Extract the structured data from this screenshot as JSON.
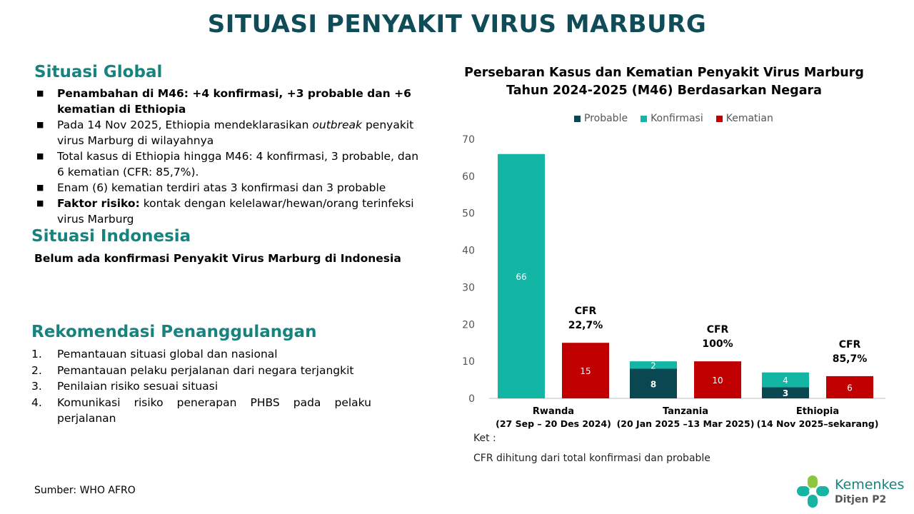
{
  "title": "SITUASI PENYAKIT VIRUS MARBURG",
  "global": {
    "heading": "Situasi Global",
    "items": [
      {
        "text": "Penambahan di M46: +4 konfirmasi, +3 probable dan +6 kematian di Ethiopia"
      },
      {
        "text_before": "Pada 14 Nov 2025, Ethiopia mendeklarasikan ",
        "text_italic": "outbreak",
        "text_after": " penyakit virus Marburg di wilayahnya"
      },
      {
        "text": "Total kasus di Ethiopia hingga M46: 4 konfirmasi, 3 probable, dan 6 kematian (CFR: 85,7%)."
      },
      {
        "text": "Enam (6) kematian terdiri atas 3 konfirmasi dan 3 probable"
      },
      {
        "bold": "Faktor risiko:",
        "text": " kontak dengan kelelawar/hewan/orang terinfeksi virus Marburg"
      }
    ]
  },
  "indonesia": {
    "heading": "Situasi Indonesia",
    "text": "Belum ada konfirmasi Penyakit Virus Marburg di Indonesia"
  },
  "recommendation": {
    "heading": "Rekomendasi Penanggulangan",
    "items": [
      {
        "num": "1.",
        "text": "Pemantauan situasi global dan nasional"
      },
      {
        "num": "2.",
        "text": "Pemantauan pelaku perjalanan dari negara terjangkit"
      },
      {
        "num": "3.",
        "text": "Penilaian risiko sesuai situasi"
      },
      {
        "num": "4.",
        "text": "Komunikasi risiko penerapan PHBS pada pelaku perjalanan"
      }
    ]
  },
  "source": "Sumber: WHO AFRO",
  "note": {
    "label": "Ket :",
    "text": "CFR dihitung dari total konfirmasi dan probable"
  },
  "logo": {
    "name": "Kemenkes",
    "sub": "Ditjen P2"
  },
  "colors": {
    "probable": "#0b4751",
    "konfirmasi": "#13b5a4",
    "kematian": "#c00000",
    "title": "#0f4c57",
    "section": "#17837f"
  },
  "chart_data": {
    "type": "bar",
    "title": "Persebaran Kasus dan Kematian Penyakit Virus Marburg Tahun 2024-2025 (M46) Berdasarkan Negara",
    "ylim": [
      0,
      70
    ],
    "yticks": [
      0,
      10,
      20,
      30,
      40,
      50,
      60,
      70
    ],
    "legend_position": "top",
    "series_names": {
      "probable": "Probable",
      "konfirmasi": "Konfirmasi",
      "kematian": "Kematian"
    },
    "groups": [
      {
        "country": "Rwanda",
        "period": "(27 Sep – 20 Des 2024)",
        "probable": 0,
        "konfirmasi": 66,
        "kematian": 15,
        "cfr_label": "CFR",
        "cfr": "22,7%"
      },
      {
        "country": "Tanzania",
        "period": "(20 Jan 2025 –13 Mar 2025)",
        "probable": 8,
        "konfirmasi": 2,
        "kematian": 10,
        "cfr_label": "CFR",
        "cfr": "100%"
      },
      {
        "country": "Ethiopia",
        "period": "(14 Nov 2025–sekarang)",
        "probable": 3,
        "konfirmasi": 4,
        "kematian": 6,
        "cfr_label": "CFR",
        "cfr": "85,7%"
      }
    ]
  }
}
